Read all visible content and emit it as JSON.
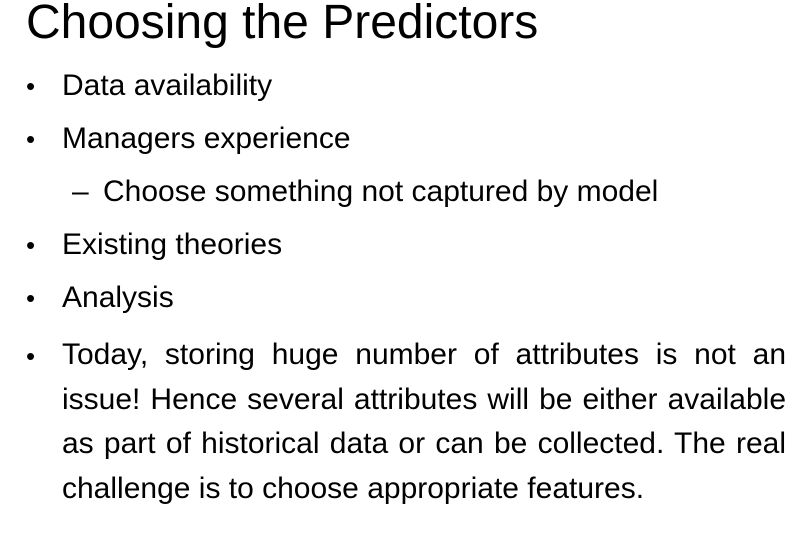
{
  "slide": {
    "title": "Choosing the Predictors",
    "bullet_glyph": "•",
    "sub_glyph": "–",
    "bullets": [
      {
        "text": "Data availability"
      },
      {
        "text": "Managers experience"
      },
      {
        "text": "Choose something not captured by model"
      },
      {
        "text": "Existing theories"
      },
      {
        "text": "Analysis"
      }
    ],
    "paragraph": "Today, storing huge number of attributes is not an issue! Hence several attributes will be either available as part of historical data or can be collected. The real challenge is to choose appropriate features."
  }
}
